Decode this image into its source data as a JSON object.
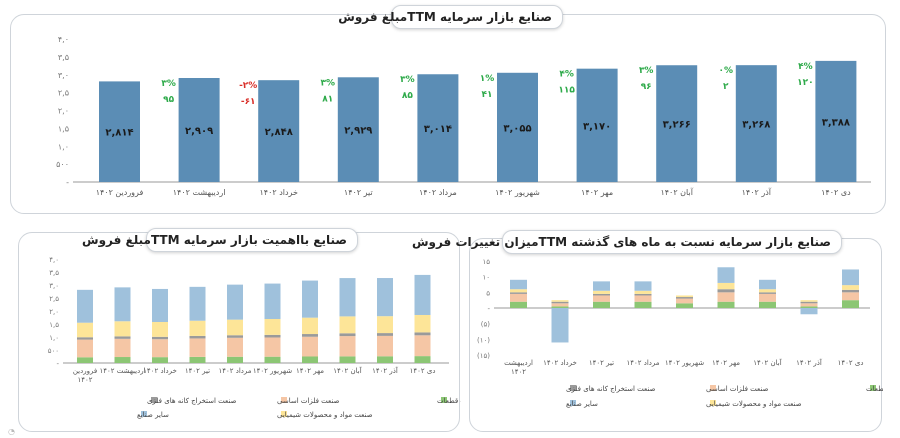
{
  "top_chart": {
    "title": "صنایع بازار سرمایه TTMمبلغ فروش",
    "chart_data": {
      "type": "bar",
      "categories": [
        "فروردین ۱۴۰۲",
        "اردیبهشت ۱۴۰۲",
        "خرداد ۱۴۰۲",
        "تیر ۱۴۰۲",
        "مرداد ۱۴۰۲",
        "شهریور ۱۴۰۲",
        "مهر ۱۴۰۲",
        "آبان ۱۴۰۲",
        "آذر ۱۴۰۲",
        "دی ۱۴۰۲"
      ],
      "values": [
        2814,
        2909,
        2848,
        2929,
        3014,
        3055,
        3170,
        3266,
        3268,
        3388
      ],
      "value_labels": [
        "۲,۸۱۴",
        "۲,۹۰۹",
        "۲,۸۴۸",
        "۲,۹۲۹",
        "۳,۰۱۴",
        "۳,۰۵۵",
        "۳,۱۷۰",
        "۳,۲۶۶",
        "۳,۲۶۸",
        "۳,۳۸۸"
      ],
      "change_pct": [
        "",
        "۳%",
        "-۲%",
        "۳%",
        "۳%",
        "۱%",
        "۴%",
        "۳%",
        "۰%",
        "۴%"
      ],
      "change_abs": [
        "",
        "۹۵",
        "-۶۱",
        "۸۱",
        "۸۵",
        "۴۱",
        "۱۱۵",
        "۹۶",
        "۲",
        "۱۲۰"
      ],
      "change_sign": [
        0,
        1,
        -1,
        1,
        1,
        1,
        1,
        1,
        1,
        1
      ],
      "yticks": [
        "۴,۰",
        "۳,۵",
        "۳,۰",
        "۲,۵",
        "۲,۰",
        "۱,۵",
        "۱,۰",
        "۵۰۰",
        "-"
      ],
      "ylim": [
        0,
        4000
      ],
      "bar_color": "#5b8db5",
      "positive_color": "#2eaa4a",
      "negative_color": "#d9302a"
    }
  },
  "bottom_left": {
    "title": "صنایع بااهمیت بازار سرمایه TTMمبلغ فروش",
    "chart_data": {
      "type": "bar",
      "stacked": true,
      "categories": [
        "فروردین ۱۴۰۲",
        "اردیبهشت ۱۴۰۲",
        "خرداد ۱۴۰۲",
        "تیر ۱۴۰۲",
        "مرداد ۱۴۰۲",
        "شهریور ۱۴۰۲",
        "مهر ۱۴۰۲",
        "آبان ۱۴۰۲",
        "آذر ۱۴۰۲",
        "دی ۱۴۰۲"
      ],
      "series": [
        {
          "name": "صنعت خودرو و ساخت قطعات",
          "color": "#8cc674",
          "values": [
            220,
            230,
            225,
            235,
            240,
            242,
            250,
            255,
            258,
            265
          ]
        },
        {
          "name": "صنعت فلزات اساسی",
          "color": "#f5c6a5",
          "values": [
            680,
            700,
            690,
            710,
            730,
            740,
            760,
            780,
            785,
            800
          ]
        },
        {
          "name": "صنعت استخراج کانه های فلزی",
          "color": "#9a9a9a",
          "values": [
            90,
            95,
            92,
            96,
            98,
            100,
            104,
            108,
            108,
            112
          ]
        },
        {
          "name": "صنعت مواد و محصولات شیمیایی",
          "color": "#fde598",
          "values": [
            560,
            580,
            570,
            585,
            600,
            610,
            630,
            650,
            650,
            670
          ]
        },
        {
          "name": "سایر صنایع",
          "color": "#9fc1dc",
          "values": [
            1264,
            1304,
            1271,
            1303,
            1346,
            1363,
            1426,
            1473,
            1467,
            1541
          ]
        }
      ],
      "yticks": [
        "۴,۰",
        "۳,۵",
        "۳,۰",
        "۲,۵",
        "۲,۰",
        "۱,۵",
        "۱,۰",
        "۵۰۰",
        "-"
      ],
      "ylim": [
        0,
        4000
      ],
      "legend": [
        "صنعت خودرو و ساخت قطعات",
        "صنعت فلزات اساسی",
        "صنعت استخراج کانه های فلزی",
        "صنعت مواد و محصولات شیمیایی",
        "سایر صنایع"
      ]
    }
  },
  "bottom_right": {
    "title": "صنایع بازار سرمایه نسبت به ماه های گذشته TTMمیزان تغییرات فروش",
    "chart_data": {
      "type": "bar",
      "stacked": true,
      "categories": [
        "اردیبهشت ۱۴۰۲",
        "خرداد ۱۴۰۲",
        "تیر ۱۴۰۲",
        "مرداد ۱۴۰۲",
        "شهریور ۱۴۰۲",
        "مهر ۱۴۰۲",
        "آبان ۱۴۰۲",
        "آذر ۱۴۰۲",
        "دی ۱۴۰۲"
      ],
      "series": [
        {
          "name": "صنعت خودرو و ساخت قطعات",
          "color": "#8cc674",
          "values": [
            2,
            0.5,
            2,
            2,
            1.5,
            2,
            2,
            0.5,
            2.5
          ]
        },
        {
          "name": "صنعت فلزات اساسی",
          "color": "#f5c6a5",
          "values": [
            2.5,
            1,
            2,
            2,
            1.5,
            3,
            2.5,
            1,
            2.5
          ]
        },
        {
          "name": "صنعت استخراج کانه های فلزی",
          "color": "#9a9a9a",
          "values": [
            0.5,
            0.5,
            0.5,
            0.5,
            0.5,
            1,
            0.5,
            0.5,
            0.8
          ]
        },
        {
          "name": "صنعت مواد و محصولات شیمیایی",
          "color": "#fde598",
          "values": [
            1,
            0.5,
            1,
            1,
            0.5,
            2,
            1,
            0.5,
            1.5
          ]
        },
        {
          "name": "سایر صنایع",
          "color": "#9fc1dc",
          "values": [
            3,
            -11,
            3,
            3,
            0,
            5,
            3,
            -2,
            5
          ]
        }
      ],
      "yticks": [
        "۱۵",
        "۱۰",
        "۵",
        "-",
        "(۵)",
        "(۱۰)",
        "(۱۵)"
      ],
      "ylim": [
        -15,
        15
      ],
      "legend": [
        "صنعت خودرو و ساخت قطعات",
        "صنعت فلزات اساسی",
        "صنعت استخراج کانه های فلزی",
        "صنعت مواد و محصولات شیمیایی",
        "سایر صنایع"
      ]
    }
  }
}
